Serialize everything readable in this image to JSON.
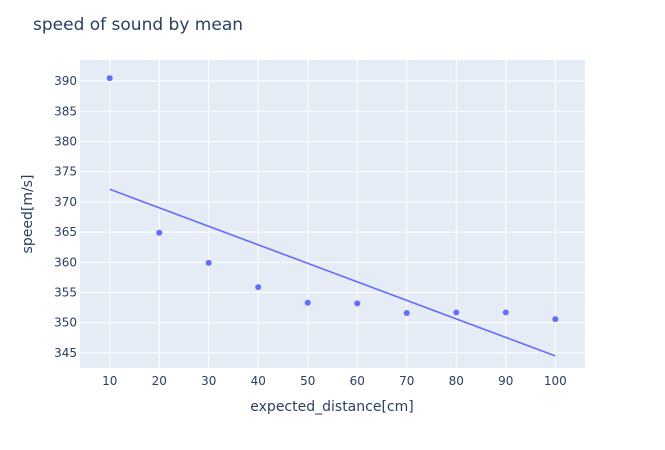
{
  "chart_data": {
    "type": "scatter",
    "title": "speed of sound by mean",
    "xlabel": "expected_distance[cm]",
    "ylabel": "speed[m/s]",
    "xlim": [
      4,
      106
    ],
    "ylim": [
      342.5,
      393.5
    ],
    "x_ticks": [
      10,
      20,
      30,
      40,
      50,
      60,
      70,
      80,
      90,
      100
    ],
    "y_ticks": [
      345,
      350,
      355,
      360,
      365,
      370,
      375,
      380,
      385,
      390
    ],
    "grid": true,
    "plot_bgcolor": "#e5ecf6",
    "marker_color": "#636efa",
    "line_color": "#636efa",
    "points": [
      {
        "x": 10,
        "y": 390.5
      },
      {
        "x": 20,
        "y": 364.9
      },
      {
        "x": 30,
        "y": 359.9
      },
      {
        "x": 40,
        "y": 355.9
      },
      {
        "x": 50,
        "y": 353.3
      },
      {
        "x": 60,
        "y": 353.2
      },
      {
        "x": 70,
        "y": 351.6
      },
      {
        "x": 80,
        "y": 351.7
      },
      {
        "x": 90,
        "y": 351.7
      },
      {
        "x": 100,
        "y": 350.6
      }
    ],
    "trendline": [
      {
        "x": 10,
        "y": 372.1
      },
      {
        "x": 100,
        "y": 344.5
      }
    ]
  }
}
